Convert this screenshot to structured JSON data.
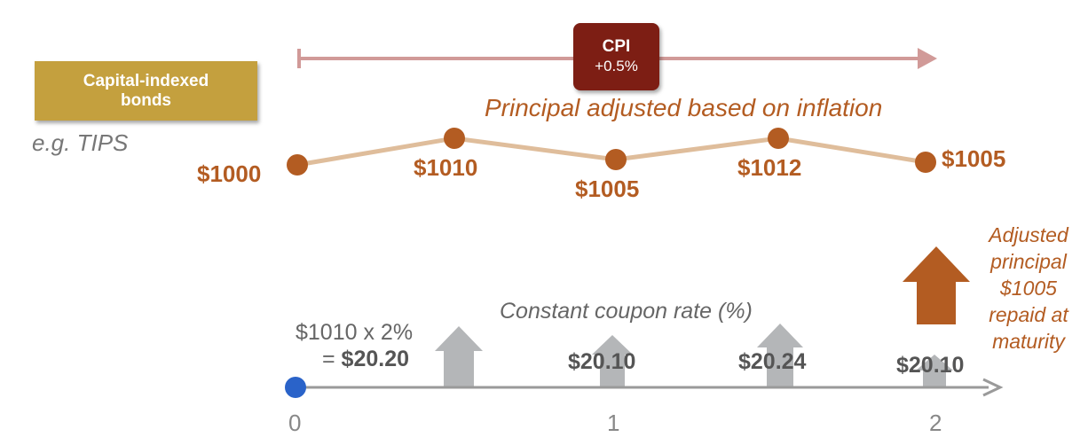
{
  "instrument": {
    "badge_label": "Capital-indexed bonds",
    "example": "e.g. TIPS"
  },
  "cpi": {
    "label": "CPI",
    "change": "+0.5%"
  },
  "principal": {
    "caption": "Principal adjusted based on inflation",
    "values": [
      "$1000",
      "$1010",
      "$1005",
      "$1012",
      "$1005"
    ]
  },
  "coupon": {
    "caption": "Constant coupon rate (%)",
    "calc_expr": "$1010 x 2%",
    "calc_eq": "= ",
    "calc_result": "$20.20",
    "values": [
      "$20.10",
      "$20.24",
      "$20.10"
    ]
  },
  "maturity_note": "Adjusted principal $1005 repaid at maturity",
  "timeline_ticks": [
    "0",
    "1",
    "2"
  ],
  "colors": {
    "badge": "#c4a03e",
    "cpi_box": "#7d1e14",
    "principal": "#b35c22",
    "principal_line": "#dfbd9b",
    "cpi_arrow": "#d19a98",
    "coupon_arrow": "#b4b6b8",
    "timeline": "#9a9a9a",
    "start_dot": "#2a63c9"
  }
}
